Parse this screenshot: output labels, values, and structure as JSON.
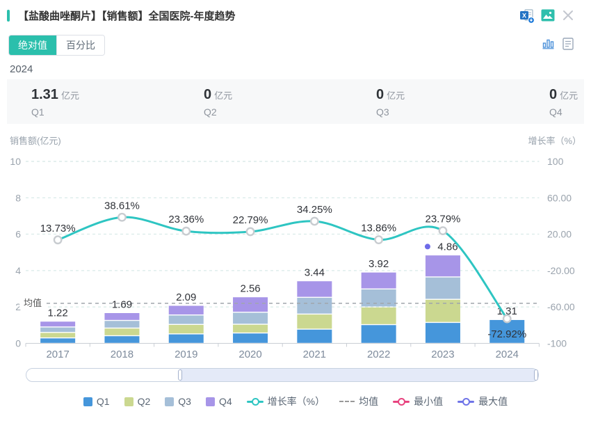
{
  "header": {
    "title": "【盐酸曲唑酮片】【销售额】全国医院-年度趋势"
  },
  "tabs": [
    {
      "label": "绝对值",
      "active": true
    },
    {
      "label": "百分比",
      "active": false
    }
  ],
  "year_label": "2024",
  "summary_cards": [
    {
      "value": "1.31",
      "unit": "亿元",
      "label": "Q1"
    },
    {
      "value": "0",
      "unit": "亿元",
      "label": "Q2"
    },
    {
      "value": "0",
      "unit": "亿元",
      "label": "Q3"
    },
    {
      "value": "0",
      "unit": "亿元",
      "label": "Q4"
    }
  ],
  "chart_data": {
    "type": "bar",
    "subtype": "stacked bars (quarterly sales) + smooth line (growth rate) on secondary axis",
    "categories": [
      "2017",
      "2018",
      "2019",
      "2020",
      "2021",
      "2022",
      "2023",
      "2024"
    ],
    "bar_series": [
      {
        "name": "Q1",
        "color": "#4596db",
        "values": [
          0.3,
          0.42,
          0.52,
          0.57,
          0.78,
          1.03,
          1.15,
          1.31
        ]
      },
      {
        "name": "Q2",
        "color": "#cbd890",
        "values": [
          0.3,
          0.42,
          0.52,
          0.48,
          0.83,
          0.97,
          1.27,
          0
        ]
      },
      {
        "name": "Q3",
        "color": "#a5bfd8",
        "values": [
          0.3,
          0.42,
          0.52,
          0.66,
          0.92,
          0.99,
          1.23,
          0
        ]
      },
      {
        "name": "Q4",
        "color": "#a795e8",
        "values": [
          0.32,
          0.43,
          0.53,
          0.85,
          0.91,
          0.93,
          1.21,
          0
        ]
      }
    ],
    "bar_totals": [
      1.22,
      1.69,
      2.09,
      2.56,
      3.44,
      3.92,
      4.86,
      1.31
    ],
    "bar_total_labels": [
      "1.22",
      "1.69",
      "2.09",
      "2.56",
      "3.44",
      "3.92",
      "4.86",
      "1.31"
    ],
    "line_series": {
      "name": "增长率（%）",
      "color": "#2ec5c2",
      "values": [
        13.73,
        38.61,
        23.36,
        22.79,
        34.25,
        13.86,
        23.79,
        -72.92
      ],
      "labels": [
        "13.73%",
        "38.61%",
        "23.36%",
        "22.79%",
        "34.25%",
        "13.86%",
        "23.79%",
        "-72.92%"
      ]
    },
    "mean_line": {
      "label": "均值",
      "value": 2.2,
      "color": "#a0a6ac"
    },
    "max_marker": {
      "category": "2023",
      "value": 4.86,
      "color": "#6e6be8"
    },
    "left_axis": {
      "title": "销售额(亿元)",
      "ticks": [
        "10",
        "8",
        "6",
        "4",
        "2",
        "0"
      ],
      "range": [
        0,
        10
      ]
    },
    "right_axis": {
      "title": "增长率（%）",
      "ticks": [
        "100",
        "60.00",
        "20.00",
        "-20.00",
        "-60.00",
        "-100"
      ],
      "range": [
        -100,
        100
      ]
    },
    "grid": true,
    "legend_position": "bottom"
  },
  "legend": [
    {
      "label": "Q1",
      "type": "square",
      "color": "#4596db"
    },
    {
      "label": "Q2",
      "type": "square",
      "color": "#cbd890"
    },
    {
      "label": "Q3",
      "type": "square",
      "color": "#a5bfd8"
    },
    {
      "label": "Q4",
      "type": "square",
      "color": "#a795e8"
    },
    {
      "label": "增长率（%）",
      "type": "line-marker",
      "color": "#2ec5c2"
    },
    {
      "label": "均值",
      "type": "dashed-line",
      "color": "#999999"
    },
    {
      "label": "最小值",
      "type": "line-marker",
      "color": "#e8437f"
    },
    {
      "label": "最大值",
      "type": "line-marker",
      "color": "#6f74e8"
    }
  ],
  "slider": {
    "selected_start_pct": 30,
    "selected_end_pct": 100
  },
  "colors": {
    "accent_teal": "#2bbfad",
    "grid_line": "#dcecea",
    "axis_text": "#9aa3ad",
    "label_text": "#2f3238"
  }
}
